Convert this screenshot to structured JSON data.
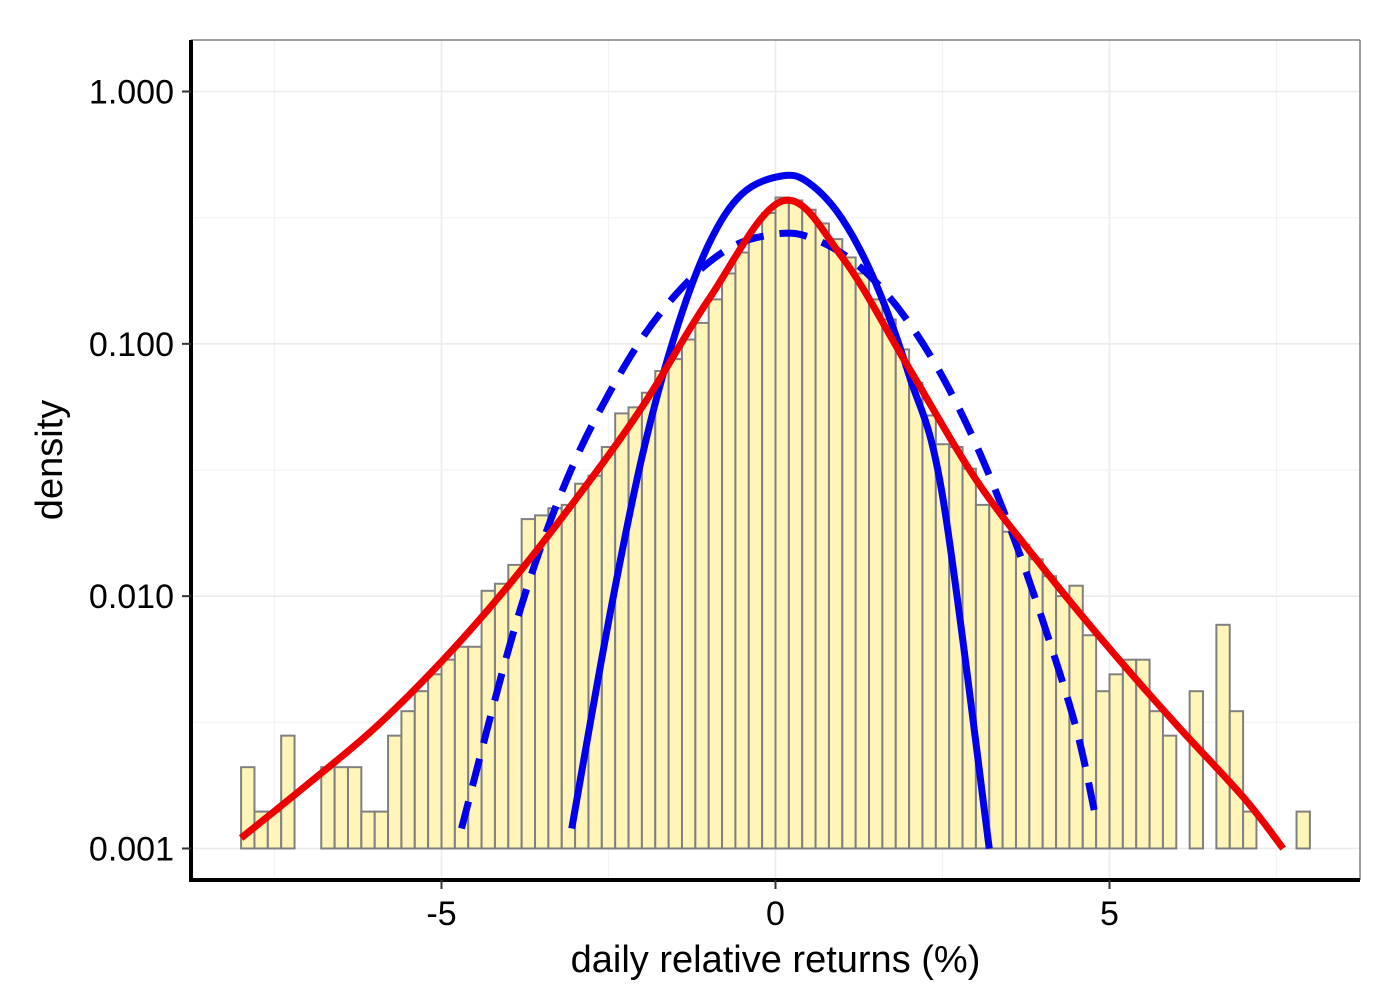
{
  "chart_data": {
    "type": "bar",
    "title": "",
    "xlabel": "daily relative returns (%)",
    "ylabel": "density",
    "y_scale": "log10",
    "xlim": [
      -8.75,
      8.75
    ],
    "ylim": [
      0.00075,
      1.6
    ],
    "x_ticks": [
      -5,
      0,
      5
    ],
    "x_tick_labels": [
      "-5",
      "0",
      "5"
    ],
    "y_ticks": [
      0.001,
      0.01,
      0.1,
      1.0
    ],
    "y_tick_labels": [
      "0.001",
      "0.010",
      "0.100",
      "1.000"
    ],
    "grid": true,
    "legend": "none",
    "histogram": {
      "bin_width": 0.2,
      "fill": "#fff5b8",
      "edge": "#808080",
      "bins": [
        {
          "x0": -8.0,
          "x1": -7.8,
          "value": 0.0021
        },
        {
          "x0": -7.8,
          "x1": -7.6,
          "value": 0.0014
        },
        {
          "x0": -7.6,
          "x1": -7.4,
          "value": 0.0014
        },
        {
          "x0": -7.4,
          "x1": -7.2,
          "value": 0.0028
        },
        {
          "x0": -6.8,
          "x1": -6.6,
          "value": 0.0021
        },
        {
          "x0": -6.6,
          "x1": -6.4,
          "value": 0.0021
        },
        {
          "x0": -6.4,
          "x1": -6.2,
          "value": 0.0021
        },
        {
          "x0": -6.2,
          "x1": -6.0,
          "value": 0.0014
        },
        {
          "x0": -6.0,
          "x1": -5.8,
          "value": 0.0014
        },
        {
          "x0": -5.8,
          "x1": -5.6,
          "value": 0.0028
        },
        {
          "x0": -5.6,
          "x1": -5.4,
          "value": 0.0035
        },
        {
          "x0": -5.4,
          "x1": -5.2,
          "value": 0.0042
        },
        {
          "x0": -5.2,
          "x1": -5.0,
          "value": 0.0049
        },
        {
          "x0": -5.0,
          "x1": -4.8,
          "value": 0.0056
        },
        {
          "x0": -4.8,
          "x1": -4.6,
          "value": 0.0063
        },
        {
          "x0": -4.6,
          "x1": -4.4,
          "value": 0.0063
        },
        {
          "x0": -4.4,
          "x1": -4.2,
          "value": 0.0105
        },
        {
          "x0": -4.2,
          "x1": -4.0,
          "value": 0.0112
        },
        {
          "x0": -4.0,
          "x1": -3.8,
          "value": 0.0133
        },
        {
          "x0": -3.8,
          "x1": -3.6,
          "value": 0.0202
        },
        {
          "x0": -3.6,
          "x1": -3.4,
          "value": 0.0209
        },
        {
          "x0": -3.4,
          "x1": -3.2,
          "value": 0.0223
        },
        {
          "x0": -3.2,
          "x1": -3.0,
          "value": 0.023
        },
        {
          "x0": -3.0,
          "x1": -2.8,
          "value": 0.0279
        },
        {
          "x0": -2.8,
          "x1": -2.6,
          "value": 0.03
        },
        {
          "x0": -2.6,
          "x1": -2.4,
          "value": 0.039
        },
        {
          "x0": -2.4,
          "x1": -2.2,
          "value": 0.053
        },
        {
          "x0": -2.2,
          "x1": -2.0,
          "value": 0.056
        },
        {
          "x0": -2.0,
          "x1": -1.8,
          "value": 0.064
        },
        {
          "x0": -1.8,
          "x1": -1.6,
          "value": 0.078
        },
        {
          "x0": -1.6,
          "x1": -1.4,
          "value": 0.087
        },
        {
          "x0": -1.4,
          "x1": -1.2,
          "value": 0.104
        },
        {
          "x0": -1.2,
          "x1": -1.0,
          "value": 0.121
        },
        {
          "x0": -1.0,
          "x1": -0.8,
          "value": 0.15
        },
        {
          "x0": -0.8,
          "x1": -0.6,
          "value": 0.19
        },
        {
          "x0": -0.6,
          "x1": -0.4,
          "value": 0.23
        },
        {
          "x0": -0.4,
          "x1": -0.2,
          "value": 0.27
        },
        {
          "x0": -0.2,
          "x1": 0.0,
          "value": 0.33
        },
        {
          "x0": 0.0,
          "x1": 0.2,
          "value": 0.38
        },
        {
          "x0": 0.2,
          "x1": 0.4,
          "value": 0.37
        },
        {
          "x0": 0.4,
          "x1": 0.6,
          "value": 0.34
        },
        {
          "x0": 0.6,
          "x1": 0.8,
          "value": 0.3
        },
        {
          "x0": 0.8,
          "x1": 1.0,
          "value": 0.26
        },
        {
          "x0": 1.0,
          "x1": 1.2,
          "value": 0.22
        },
        {
          "x0": 1.2,
          "x1": 1.4,
          "value": 0.19
        },
        {
          "x0": 1.4,
          "x1": 1.6,
          "value": 0.15
        },
        {
          "x0": 1.6,
          "x1": 1.8,
          "value": 0.125
        },
        {
          "x0": 1.8,
          "x1": 2.0,
          "value": 0.095
        },
        {
          "x0": 2.0,
          "x1": 2.2,
          "value": 0.07
        },
        {
          "x0": 2.2,
          "x1": 2.4,
          "value": 0.052
        },
        {
          "x0": 2.4,
          "x1": 2.6,
          "value": 0.04
        },
        {
          "x0": 2.6,
          "x1": 2.8,
          "value": 0.039
        },
        {
          "x0": 2.8,
          "x1": 3.0,
          "value": 0.032
        },
        {
          "x0": 3.0,
          "x1": 3.2,
          "value": 0.023
        },
        {
          "x0": 3.2,
          "x1": 3.4,
          "value": 0.023
        },
        {
          "x0": 3.4,
          "x1": 3.6,
          "value": 0.018
        },
        {
          "x0": 3.6,
          "x1": 3.8,
          "value": 0.016
        },
        {
          "x0": 3.8,
          "x1": 4.0,
          "value": 0.014
        },
        {
          "x0": 4.0,
          "x1": 4.2,
          "value": 0.012
        },
        {
          "x0": 4.2,
          "x1": 4.4,
          "value": 0.01
        },
        {
          "x0": 4.4,
          "x1": 4.6,
          "value": 0.011
        },
        {
          "x0": 4.6,
          "x1": 4.8,
          "value": 0.007
        },
        {
          "x0": 4.8,
          "x1": 5.0,
          "value": 0.0042
        },
        {
          "x0": 5.0,
          "x1": 5.2,
          "value": 0.0049
        },
        {
          "x0": 5.2,
          "x1": 5.4,
          "value": 0.0056
        },
        {
          "x0": 5.4,
          "x1": 5.6,
          "value": 0.0056
        },
        {
          "x0": 5.6,
          "x1": 5.8,
          "value": 0.0035
        },
        {
          "x0": 5.8,
          "x1": 6.0,
          "value": 0.0028
        },
        {
          "x0": 6.2,
          "x1": 6.4,
          "value": 0.0042
        },
        {
          "x0": 6.6,
          "x1": 6.8,
          "value": 0.0077
        },
        {
          "x0": 6.8,
          "x1": 7.0,
          "value": 0.0035
        },
        {
          "x0": 7.0,
          "x1": 7.2,
          "value": 0.0014
        },
        {
          "x0": 7.8,
          "x1": 8.0,
          "value": 0.0014
        }
      ]
    },
    "series": [
      {
        "style": "solid",
        "color": "#0000ee",
        "x": [
          -3.05,
          -2.5,
          -2.0,
          -1.5,
          -1.0,
          -0.5,
          0.1,
          0.5,
          1.0,
          1.5,
          2.0,
          2.5,
          3.2
        ],
        "y": [
          0.0012,
          0.0079,
          0.0355,
          0.11,
          0.248,
          0.393,
          0.463,
          0.434,
          0.312,
          0.174,
          0.075,
          0.025,
          0.001
        ]
      },
      {
        "style": "dashed",
        "color": "#0000ee",
        "x": [
          -4.7,
          -4.0,
          -3.5,
          -3.0,
          -2.5,
          -2.0,
          -1.5,
          -1.0,
          -0.5,
          0.1,
          0.5,
          1.0,
          1.5,
          2.0,
          2.5,
          3.0,
          3.5,
          4.0,
          4.5,
          4.8
        ],
        "y": [
          0.0012,
          0.0061,
          0.016,
          0.0345,
          0.063,
          0.105,
          0.156,
          0.21,
          0.253,
          0.274,
          0.265,
          0.228,
          0.176,
          0.121,
          0.074,
          0.04,
          0.019,
          0.008,
          0.003,
          0.0013
        ]
      },
      {
        "style": "solid",
        "color": "#ee0000",
        "x": [
          -8.0,
          -7.0,
          -6.0,
          -5.0,
          -4.0,
          -3.0,
          -2.0,
          -1.0,
          0.1,
          1.0,
          2.0,
          3.0,
          4.0,
          5.0,
          6.0,
          7.0,
          7.6
        ],
        "y": [
          0.0011,
          0.0018,
          0.003,
          0.0055,
          0.011,
          0.024,
          0.056,
          0.15,
          0.368,
          0.22,
          0.08,
          0.029,
          0.013,
          0.0062,
          0.0031,
          0.0016,
          0.001
        ]
      }
    ]
  }
}
